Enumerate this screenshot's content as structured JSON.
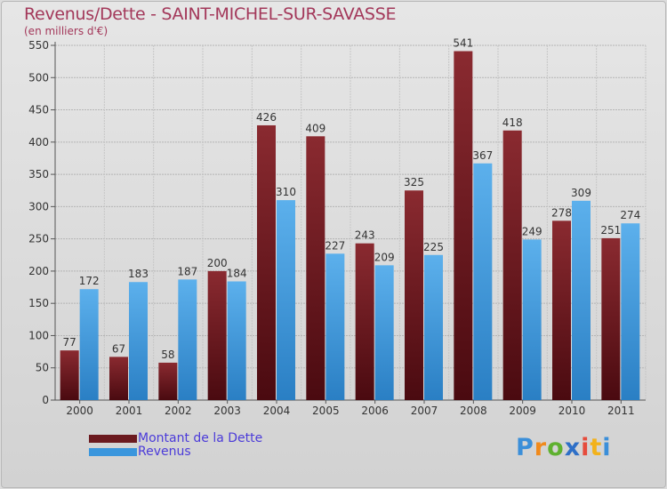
{
  "title": "Revenus/Dette - SAINT-MICHEL-SUR-SAVASSE",
  "subtitle": "(en milliers d'€)",
  "logo": {
    "text": "Proxiti",
    "letters": [
      "P",
      "r",
      "o",
      "x",
      "i",
      "t",
      "i"
    ],
    "colors": [
      "#3b8fd9",
      "#f08a1c",
      "#5fb130",
      "#2e6fc7",
      "#e64c3c",
      "#f2b21b",
      "#3b8fd9"
    ]
  },
  "colors": {
    "dette": "#6b1a1f",
    "revenus": "#3a96dd"
  },
  "chart_data": {
    "type": "bar",
    "title": "Revenus/Dette - SAINT-MICHEL-SUR-SAVASSE",
    "subtitle": "(en milliers d'€)",
    "xlabel": "",
    "ylabel": "",
    "ylim": [
      0,
      550
    ],
    "yticks": [
      0,
      50,
      100,
      150,
      200,
      250,
      300,
      350,
      400,
      450,
      500,
      550
    ],
    "grid": true,
    "legend_position": "bottom-left",
    "categories": [
      "2000",
      "2001",
      "2002",
      "2003",
      "2004",
      "2005",
      "2006",
      "2007",
      "2008",
      "2009",
      "2010",
      "2011"
    ],
    "series": [
      {
        "name": "Montant de la Dette",
        "values": [
          77,
          67,
          58,
          200,
          426,
          409,
          243,
          325,
          541,
          418,
          278,
          251
        ]
      },
      {
        "name": "Revenus",
        "values": [
          172,
          183,
          187,
          184,
          310,
          227,
          209,
          225,
          367,
          249,
          309,
          274
        ]
      }
    ]
  }
}
